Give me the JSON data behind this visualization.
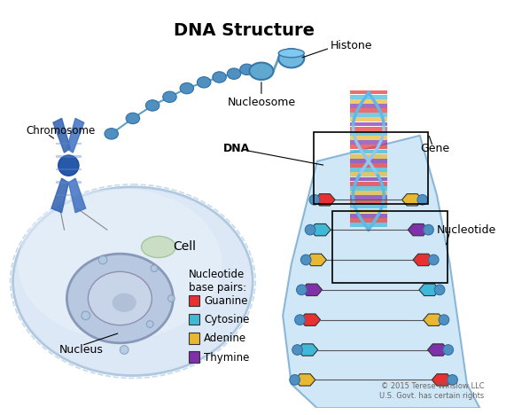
{
  "title": "DNA Structure",
  "title_fontsize": 14,
  "title_fontweight": "bold",
  "background_color": "#ffffff",
  "labels": {
    "chromosome": "Chromosome",
    "cell": "Cell",
    "nucleus": "Nucleus",
    "histone": "Histone",
    "nucleosome": "Nucleosome",
    "dna": "DNA",
    "gene": "Gene",
    "nucleotide": "Nucleotide",
    "base_pairs_title": "Nucleotide\nbase pairs:",
    "guanine": "Guanine",
    "cytosine": "Cytosine",
    "adenine": "Adenine",
    "thymine": "Thymine"
  },
  "legend_colors": {
    "guanine": "#e83030",
    "cytosine": "#40b8d8",
    "adenine": "#e8b830",
    "thymine": "#8030a8"
  },
  "cell_color": "#d0dff0",
  "cell_outline": "#a8c0e0",
  "nucleus_color": "#b0b8d8",
  "chromosome_color": "#3060b0",
  "dna_strand_color": "#60a8d8",
  "dna_strand_color2": "#a0c8e8",
  "helix_color1": "#e87030",
  "helix_color2": "#40b8d8",
  "helix_color3": "#e8e030",
  "helix_color4": "#8030a8",
  "background_box_color": "#f0f8ff",
  "copyright": "© 2015 Terese Winslow LLC\nU.S. Govt. has certain rights",
  "copyright_fontsize": 6
}
